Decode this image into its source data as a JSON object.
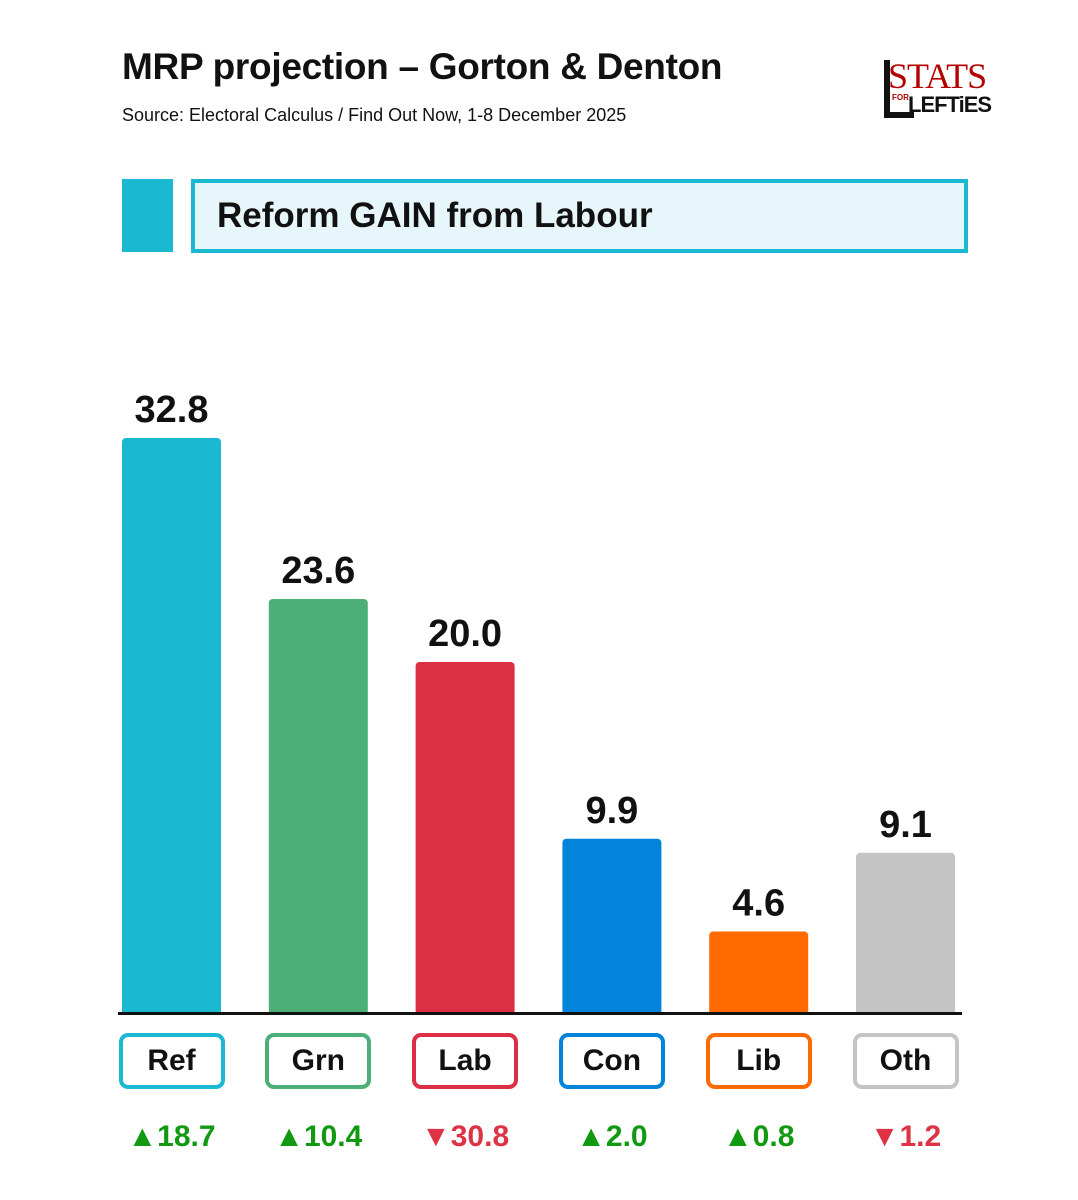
{
  "header": {
    "title": "MRP projection – Gorton & Denton",
    "subtitle": "Source: Electoral Calculus / Find Out Now, 1-8 December 2025"
  },
  "logo": {
    "stats": "STATS",
    "for": "FOR",
    "lefties": "LEFTiES",
    "stats_color": "#b30000"
  },
  "banner": {
    "text": "Reform GAIN from Labour",
    "accent": "#1ab8d1",
    "fill": "#e6f6fa"
  },
  "colors": {
    "up": "#119911",
    "down": "#dd3344"
  },
  "chart_data": {
    "type": "bar",
    "title": "MRP projection – Gorton & Denton",
    "categories": [
      "Ref",
      "Grn",
      "Lab",
      "Con",
      "Lib",
      "Oth"
    ],
    "values": [
      32.8,
      23.6,
      20.0,
      9.9,
      4.6,
      9.1
    ],
    "value_labels": [
      "32.8",
      "23.6",
      "20.0",
      "9.9",
      "4.6",
      "9.1"
    ],
    "changes": [
      18.7,
      10.4,
      -30.8,
      2.0,
      0.8,
      -1.2
    ],
    "change_labels": [
      "▲18.7",
      "▲10.4",
      "▼30.8",
      "▲2.0",
      "▲0.8",
      "▼1.2"
    ],
    "colors": [
      "#1ab8d1",
      "#4caf78",
      "#dc2e45",
      "#0384db",
      "#ff6a00",
      "#c4c4c4"
    ],
    "ylim": [
      0,
      35
    ],
    "grid": false,
    "legend": "none"
  }
}
